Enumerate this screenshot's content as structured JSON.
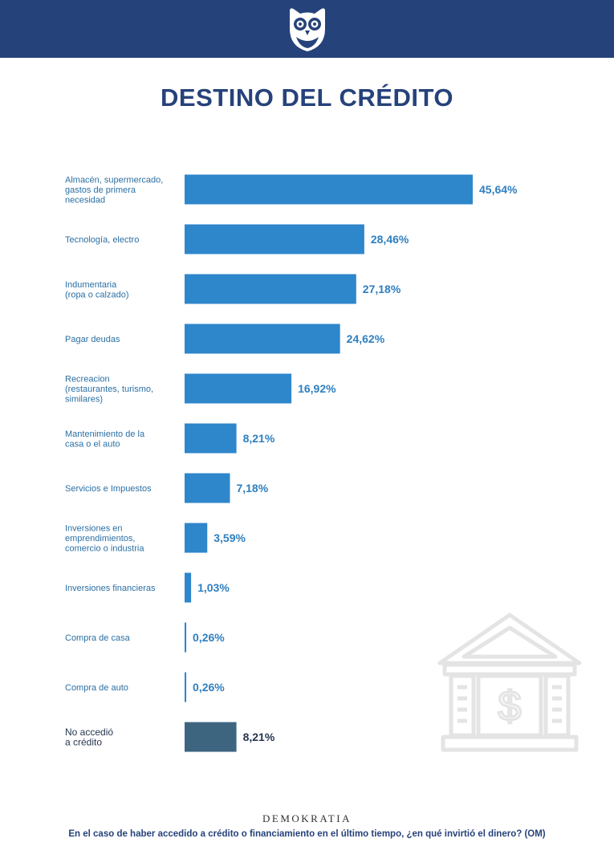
{
  "header": {
    "logo_icon": "owl-icon"
  },
  "footer": {
    "brand": "DEMOKRATIA",
    "question": "En el caso de haber accedido a crédito o financiamiento en el último tiempo, ¿en qué invirtió el dinero? (OM)"
  },
  "decoration": {
    "icon": "bank-building-dollar-icon"
  },
  "chart_data": {
    "type": "bar",
    "orientation": "horizontal",
    "title": "DESTINO DEL CRÉDITO",
    "xlabel": "",
    "ylabel": "",
    "xlim": [
      0,
      45.64
    ],
    "grid": false,
    "value_suffix": "%",
    "categories": [
      "Almacén, supermercado, gastos de primera necesidad",
      "Tecnología, electro",
      "Indumentaria (ropa o calzado)",
      "Pagar deudas",
      "Recreacion (restaurantes, turismo, similares)",
      "Mantenimiento de la casa o el auto",
      "Servicios e Impuestos",
      "Inversiones en emprendimientos, comercio o industria",
      "Inversiones financieras",
      "Compra de casa",
      "Compra de auto",
      "No accedió a crédito"
    ],
    "category_lines": [
      [
        "Almacén, supermercado,",
        "gastos de primera",
        "necesidad"
      ],
      [
        "Tecnología, electro"
      ],
      [
        "Indumentaria",
        "(ropa o calzado)"
      ],
      [
        "Pagar deudas"
      ],
      [
        "Recreacion",
        "(restaurantes, turismo,",
        "similares)"
      ],
      [
        "Mantenimiento de la",
        "casa o el auto"
      ],
      [
        "Servicios e Impuestos"
      ],
      [
        "Inversiones en",
        "emprendimientos,",
        "comercio o industria"
      ],
      [
        "Inversiones financieras"
      ],
      [
        "Compra de casa"
      ],
      [
        "Compra de auto"
      ],
      [
        "No accedió",
        "a crédito"
      ]
    ],
    "values": [
      45.64,
      28.46,
      27.18,
      24.62,
      16.92,
      8.21,
      7.18,
      3.59,
      1.03,
      0.26,
      0.26,
      8.21
    ],
    "value_labels": [
      "45,64%",
      "28,46%",
      "27,18%",
      "24,62%",
      "16,92%",
      "8,21%",
      "7,18%",
      "3,59%",
      "1,03%",
      "0,26%",
      "0,26%",
      "8,21%"
    ],
    "colors": {
      "bar": "#2e86cb",
      "highlight_bar": "#3d6580",
      "label": "#2b6fa3",
      "highlight_label": "#26364f",
      "value": "#2e7fc0",
      "highlight_value": "#26364f"
    },
    "highlight_index": 11
  }
}
